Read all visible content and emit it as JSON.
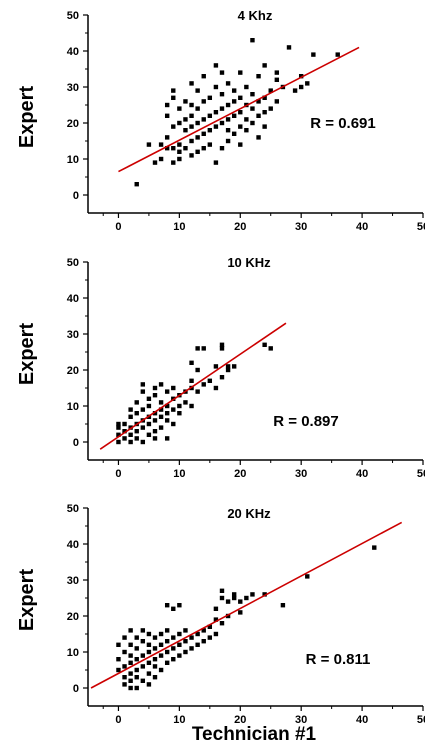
{
  "figure": {
    "shared_xlabel": "Technician #1",
    "colors": {
      "points": "#000000",
      "fit_line": "#cc0000",
      "axes": "#000000"
    }
  },
  "chart_data": [
    {
      "type": "scatter",
      "title": "4 Khz",
      "ylabel": "Expert",
      "xlabel": "",
      "annotation": "R = 0.691",
      "xlim": [
        -5,
        50
      ],
      "ylim": [
        -5,
        50
      ],
      "xticks": [
        "0",
        "10",
        "20",
        "30",
        "40",
        "50"
      ],
      "yticks": [
        "0",
        "10",
        "20",
        "30",
        "40",
        "50"
      ],
      "grid": false,
      "fit_line": {
        "x": [
          0,
          39.5
        ],
        "y": [
          6.5,
          41
        ]
      },
      "points": [
        [
          3,
          3
        ],
        [
          5,
          14
        ],
        [
          6,
          9
        ],
        [
          7,
          10
        ],
        [
          7,
          14
        ],
        [
          8,
          13
        ],
        [
          8,
          16
        ],
        [
          8,
          22
        ],
        [
          8,
          25
        ],
        [
          9,
          9
        ],
        [
          9,
          13
        ],
        [
          9,
          19
        ],
        [
          9,
          27
        ],
        [
          9,
          29
        ],
        [
          10,
          10
        ],
        [
          10,
          12
        ],
        [
          10,
          14
        ],
        [
          10,
          20
        ],
        [
          10,
          24
        ],
        [
          11,
          13
        ],
        [
          11,
          18
        ],
        [
          11,
          21
        ],
        [
          11,
          26
        ],
        [
          12,
          11
        ],
        [
          12,
          15
        ],
        [
          12,
          19
        ],
        [
          12,
          22
        ],
        [
          12,
          25
        ],
        [
          12,
          31
        ],
        [
          13,
          12
        ],
        [
          13,
          16
        ],
        [
          13,
          20
        ],
        [
          13,
          24
        ],
        [
          13,
          29
        ],
        [
          14,
          13
        ],
        [
          14,
          17
        ],
        [
          14,
          21
        ],
        [
          14,
          26
        ],
        [
          14,
          33
        ],
        [
          15,
          14
        ],
        [
          15,
          18
        ],
        [
          15,
          22
        ],
        [
          15,
          27
        ],
        [
          16,
          9
        ],
        [
          16,
          19
        ],
        [
          16,
          23
        ],
        [
          16,
          30
        ],
        [
          16,
          36
        ],
        [
          17,
          13
        ],
        [
          17,
          20
        ],
        [
          17,
          24
        ],
        [
          17,
          28
        ],
        [
          17,
          34
        ],
        [
          18,
          15
        ],
        [
          18,
          18
        ],
        [
          18,
          21
        ],
        [
          18,
          25
        ],
        [
          18,
          31
        ],
        [
          19,
          17
        ],
        [
          19,
          22
        ],
        [
          19,
          26
        ],
        [
          19,
          29
        ],
        [
          20,
          14
        ],
        [
          20,
          19
        ],
        [
          20,
          23
        ],
        [
          20,
          27
        ],
        [
          20,
          34
        ],
        [
          21,
          18
        ],
        [
          21,
          21
        ],
        [
          21,
          25
        ],
        [
          21,
          30
        ],
        [
          22,
          20
        ],
        [
          22,
          24
        ],
        [
          22,
          28
        ],
        [
          22,
          43
        ],
        [
          23,
          16
        ],
        [
          23,
          22
        ],
        [
          23,
          26
        ],
        [
          23,
          33
        ],
        [
          24,
          19
        ],
        [
          24,
          23
        ],
        [
          24,
          27
        ],
        [
          24,
          36
        ],
        [
          25,
          24
        ],
        [
          25,
          29
        ],
        [
          26,
          26
        ],
        [
          26,
          32
        ],
        [
          26,
          34
        ],
        [
          27,
          30
        ],
        [
          28,
          41
        ],
        [
          29,
          29
        ],
        [
          30,
          30
        ],
        [
          30,
          33
        ],
        [
          31,
          31
        ],
        [
          32,
          39
        ],
        [
          36,
          39
        ]
      ]
    },
    {
      "type": "scatter",
      "title": "10 KHz",
      "ylabel": "Expert",
      "xlabel": "",
      "annotation": "R = 0.897",
      "xlim": [
        -5,
        50
      ],
      "ylim": [
        -5,
        50
      ],
      "xticks": [
        "0",
        "10",
        "20",
        "30",
        "40",
        "50"
      ],
      "yticks": [
        "0",
        "10",
        "20",
        "30",
        "40",
        "50"
      ],
      "grid": false,
      "fit_line": {
        "x": [
          -3,
          27.5
        ],
        "y": [
          -2,
          33
        ]
      },
      "points": [
        [
          0,
          0
        ],
        [
          0,
          2
        ],
        [
          0,
          4
        ],
        [
          0,
          5
        ],
        [
          1,
          1
        ],
        [
          1,
          3
        ],
        [
          1,
          5
        ],
        [
          2,
          0
        ],
        [
          2,
          2
        ],
        [
          2,
          4
        ],
        [
          2,
          7
        ],
        [
          2,
          9
        ],
        [
          3,
          1
        ],
        [
          3,
          3
        ],
        [
          3,
          5
        ],
        [
          3,
          8
        ],
        [
          3,
          11
        ],
        [
          4,
          0
        ],
        [
          4,
          4
        ],
        [
          4,
          6
        ],
        [
          4,
          9
        ],
        [
          4,
          14
        ],
        [
          4,
          16
        ],
        [
          5,
          2
        ],
        [
          5,
          5
        ],
        [
          5,
          7
        ],
        [
          5,
          10
        ],
        [
          5,
          12
        ],
        [
          6,
          1
        ],
        [
          6,
          3
        ],
        [
          6,
          6
        ],
        [
          6,
          8
        ],
        [
          6,
          13
        ],
        [
          6,
          15
        ],
        [
          7,
          4
        ],
        [
          7,
          7
        ],
        [
          7,
          9
        ],
        [
          7,
          11
        ],
        [
          7,
          16
        ],
        [
          8,
          1
        ],
        [
          8,
          6
        ],
        [
          8,
          8
        ],
        [
          8,
          10
        ],
        [
          8,
          14
        ],
        [
          9,
          5
        ],
        [
          9,
          9
        ],
        [
          9,
          12
        ],
        [
          9,
          15
        ],
        [
          10,
          8
        ],
        [
          10,
          10
        ],
        [
          10,
          13
        ],
        [
          11,
          11
        ],
        [
          11,
          14
        ],
        [
          12,
          10
        ],
        [
          12,
          15
        ],
        [
          12,
          17
        ],
        [
          12,
          22
        ],
        [
          13,
          14
        ],
        [
          13,
          20
        ],
        [
          13,
          26
        ],
        [
          14,
          16
        ],
        [
          14,
          26
        ],
        [
          15,
          17
        ],
        [
          16,
          15
        ],
        [
          16,
          21
        ],
        [
          17,
          18
        ],
        [
          17,
          26
        ],
        [
          17,
          27
        ],
        [
          18,
          20
        ],
        [
          18,
          21
        ],
        [
          19,
          21
        ],
        [
          24,
          27
        ],
        [
          25,
          26
        ]
      ]
    },
    {
      "type": "scatter",
      "title": "20 KHz",
      "ylabel": "Expert",
      "xlabel": "Technician #1",
      "annotation": "R = 0.811",
      "xlim": [
        -5,
        50
      ],
      "ylim": [
        -5,
        50
      ],
      "xticks": [
        "0",
        "10",
        "20",
        "30",
        "40",
        "50"
      ],
      "yticks": [
        "0",
        "10",
        "20",
        "30",
        "40",
        "50"
      ],
      "grid": false,
      "fit_line": {
        "x": [
          -4.5,
          46.5
        ],
        "y": [
          0,
          46
        ]
      },
      "points": [
        [
          0,
          5
        ],
        [
          0,
          8
        ],
        [
          0,
          12
        ],
        [
          1,
          1
        ],
        [
          1,
          3
        ],
        [
          1,
          6
        ],
        [
          1,
          10
        ],
        [
          1,
          14
        ],
        [
          2,
          0
        ],
        [
          2,
          2
        ],
        [
          2,
          4
        ],
        [
          2,
          7
        ],
        [
          2,
          9
        ],
        [
          2,
          12
        ],
        [
          2,
          16
        ],
        [
          3,
          0
        ],
        [
          3,
          3
        ],
        [
          3,
          5
        ],
        [
          3,
          8
        ],
        [
          3,
          11
        ],
        [
          3,
          14
        ],
        [
          4,
          2
        ],
        [
          4,
          6
        ],
        [
          4,
          9
        ],
        [
          4,
          13
        ],
        [
          4,
          16
        ],
        [
          5,
          1
        ],
        [
          5,
          4
        ],
        [
          5,
          7
        ],
        [
          5,
          10
        ],
        [
          5,
          12
        ],
        [
          5,
          15
        ],
        [
          6,
          3
        ],
        [
          6,
          6
        ],
        [
          6,
          8
        ],
        [
          6,
          11
        ],
        [
          6,
          14
        ],
        [
          7,
          5
        ],
        [
          7,
          9
        ],
        [
          7,
          12
        ],
        [
          7,
          15
        ],
        [
          8,
          7
        ],
        [
          8,
          10
        ],
        [
          8,
          13
        ],
        [
          8,
          16
        ],
        [
          8,
          23
        ],
        [
          9,
          8
        ],
        [
          9,
          11
        ],
        [
          9,
          14
        ],
        [
          9,
          22
        ],
        [
          10,
          9
        ],
        [
          10,
          12
        ],
        [
          10,
          15
        ],
        [
          10,
          23
        ],
        [
          11,
          10
        ],
        [
          11,
          13
        ],
        [
          11,
          16
        ],
        [
          12,
          11
        ],
        [
          12,
          14
        ],
        [
          13,
          12
        ],
        [
          13,
          15
        ],
        [
          14,
          13
        ],
        [
          14,
          16
        ],
        [
          15,
          14
        ],
        [
          15,
          17
        ],
        [
          16,
          15
        ],
        [
          16,
          19
        ],
        [
          16,
          22
        ],
        [
          17,
          18
        ],
        [
          17,
          25
        ],
        [
          17,
          27
        ],
        [
          18,
          20
        ],
        [
          18,
          24
        ],
        [
          19,
          25
        ],
        [
          19,
          26
        ],
        [
          20,
          21
        ],
        [
          20,
          24
        ],
        [
          21,
          25
        ],
        [
          22,
          26
        ],
        [
          24,
          26
        ],
        [
          27,
          23
        ],
        [
          31,
          31
        ],
        [
          42,
          39
        ]
      ]
    }
  ]
}
